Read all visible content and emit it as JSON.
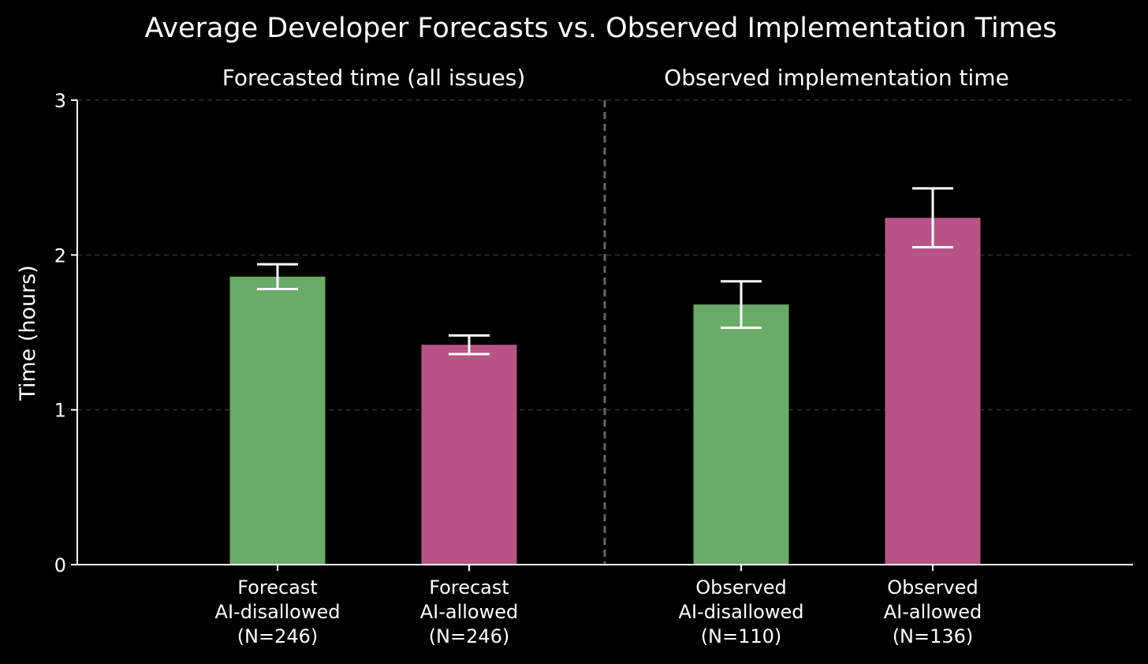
{
  "chart_data": {
    "type": "bar",
    "title": "Average Developer Forecasts vs. Observed Implementation Times",
    "section_labels": [
      "Forecasted time (all issues)",
      "Observed implementation time"
    ],
    "ylabel": "Time (hours)",
    "xlabel": "",
    "ylim": [
      0,
      3
    ],
    "yticks": [
      0,
      1,
      2,
      3
    ],
    "grid": "horizontal dashed",
    "categories": [
      [
        "Forecast",
        "AI-disallowed",
        "(N=246)"
      ],
      [
        "Forecast",
        "AI-allowed",
        "(N=246)"
      ],
      [
        "Observed",
        "AI-disallowed",
        "(N=110)"
      ],
      [
        "Observed",
        "AI-allowed",
        "(N=136)"
      ]
    ],
    "values": [
      1.86,
      1.42,
      1.68,
      2.24
    ],
    "error_low": [
      1.78,
      1.36,
      1.53,
      2.05
    ],
    "error_high": [
      1.94,
      1.48,
      1.83,
      2.43
    ],
    "colors": [
      "#69ab67",
      "#b85484",
      "#69ab67",
      "#b85484"
    ],
    "background": "#000000"
  }
}
